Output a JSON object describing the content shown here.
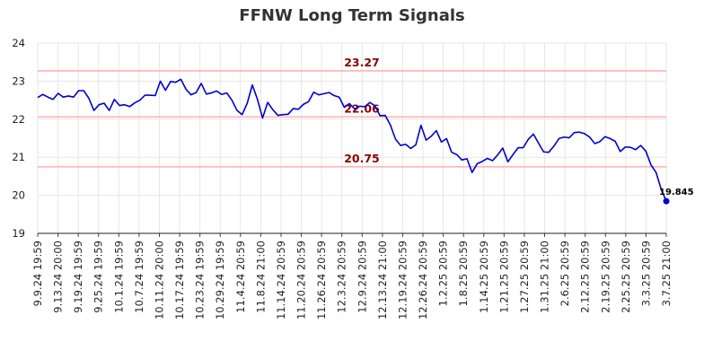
{
  "chart_data": {
    "type": "line",
    "title": "FFNW Long Term Signals",
    "xlabel": "",
    "ylabel": "",
    "ylim": [
      19,
      24
    ],
    "yticks": [
      19,
      20,
      21,
      22,
      23,
      24
    ],
    "grid": true,
    "x_ticks": [
      "9.9.24 19:59",
      "9.13.24 20:00",
      "9.19.24 19:59",
      "9.25.24 19:59",
      "10.1.24 19:59",
      "10.7.24 19:59",
      "10.11.24 20:00",
      "10.17.24 19:59",
      "10.23.24 19:59",
      "10.29.24 19:59",
      "11.4.24 20:59",
      "11.8.24 21:00",
      "11.14.24 20:59",
      "11.20.24 20:59",
      "11.26.24 20:59",
      "12.3.24 20:59",
      "12.9.24 20:59",
      "12.13.24 21:00",
      "12.19.24 20:59",
      "12.26.24 20:59",
      "1.2.25 20:59",
      "1.8.25 20:59",
      "1.14.25 20:59",
      "1.21.25 20:59",
      "1.27.25 20:59",
      "1.31.25 21:00",
      "2.6.25 20:59",
      "2.12.25 20:59",
      "2.19.25 20:59",
      "2.25.25 20:59",
      "3.3.25 20:59",
      "3.7.25 21:00"
    ],
    "levels": [
      {
        "value": 23.27,
        "label": "23.27",
        "color": "#ffb3b3"
      },
      {
        "value": 22.06,
        "label": "22.06",
        "color": "#ffb3b3"
      },
      {
        "value": 20.75,
        "label": "20.75",
        "color": "#ffb3b3"
      }
    ],
    "series": [
      {
        "color": "#0000cc",
        "values": [
          22.57,
          22.65,
          22.58,
          22.52,
          22.68,
          22.58,
          22.61,
          22.58,
          22.75,
          22.75,
          22.55,
          22.23,
          22.38,
          22.42,
          22.23,
          22.52,
          22.36,
          22.38,
          22.33,
          22.43,
          22.5,
          22.63,
          22.63,
          22.62,
          23.0,
          22.76,
          22.99,
          22.97,
          23.05,
          22.79,
          22.64,
          22.7,
          22.94,
          22.66,
          22.69,
          22.74,
          22.65,
          22.69,
          22.5,
          22.23,
          22.12,
          22.42,
          22.9,
          22.52,
          22.03,
          22.44,
          22.25,
          22.1,
          22.12,
          22.13,
          22.28,
          22.26,
          22.39,
          22.46,
          22.71,
          22.64,
          22.67,
          22.7,
          22.62,
          22.58,
          22.31,
          22.41,
          22.27,
          22.34,
          22.33,
          22.44,
          22.35,
          22.09,
          22.1,
          21.85,
          21.48,
          21.31,
          21.34,
          21.23,
          21.33,
          21.84,
          21.45,
          21.55,
          21.7,
          21.4,
          21.49,
          21.13,
          21.07,
          20.93,
          20.96,
          20.6,
          20.83,
          20.89,
          20.97,
          20.91,
          21.06,
          21.24,
          20.88,
          21.07,
          21.25,
          21.25,
          21.47,
          21.61,
          21.37,
          21.14,
          21.13,
          21.29,
          21.49,
          21.53,
          21.51,
          21.65,
          21.66,
          21.62,
          21.53,
          21.36,
          21.41,
          21.54,
          21.49,
          21.42,
          21.15,
          21.27,
          21.26,
          21.2,
          21.31,
          21.16,
          20.8,
          20.6,
          20.16,
          19.845
        ]
      }
    ],
    "last_value_label": "19.845"
  }
}
